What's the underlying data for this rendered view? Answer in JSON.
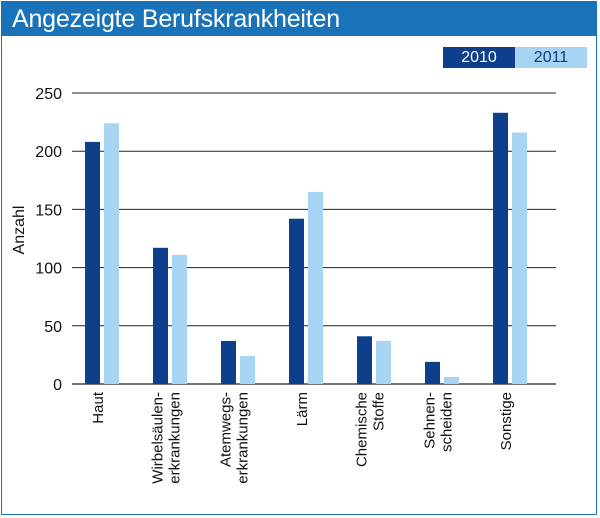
{
  "colors": {
    "frame": "#1a73b8",
    "title_bar": "#1a73b8",
    "series_2010": "#0d3f8c",
    "series_2011": "#a8d4f3",
    "grid": "#222222"
  },
  "title": "Angezeigte Berufskrankheiten",
  "legend": {
    "items": [
      "2010",
      "2011"
    ],
    "placement": "top-right"
  },
  "chart_data": {
    "type": "bar",
    "title": "Angezeigte Berufskrankheiten",
    "xlabel": "",
    "ylabel": "Anzahl",
    "ylim": [
      0,
      250
    ],
    "yticks": [
      0,
      50,
      100,
      150,
      200,
      250
    ],
    "grid": true,
    "categories": [
      [
        "Haut"
      ],
      [
        "Wirbelsäulen-",
        "erkrankungen"
      ],
      [
        "Atemwegs-",
        "erkrankungen"
      ],
      [
        "Lärm"
      ],
      [
        "Chemische",
        "Stoffe"
      ],
      [
        "Sehnen-",
        "scheiden"
      ],
      [
        "Sonstige"
      ]
    ],
    "series": [
      {
        "name": "2010",
        "values": [
          208,
          117,
          37,
          142,
          41,
          19,
          233
        ]
      },
      {
        "name": "2011",
        "values": [
          224,
          111,
          24,
          165,
          37,
          6,
          216
        ]
      }
    ]
  }
}
